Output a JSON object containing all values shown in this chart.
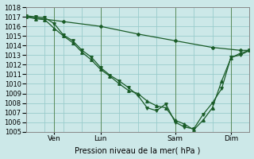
{
  "title": "",
  "xlabel": "Pression niveau de la mer( hPa )",
  "ylabel": "",
  "background_color": "#cce8e8",
  "grid_color": "#99cccc",
  "line_color": "#1a5c28",
  "marker_color": "#1a5c28",
  "ylim": [
    1005,
    1018
  ],
  "xlim": [
    0,
    12
  ],
  "series": [
    {
      "x": [
        0.0,
        2.0,
        4.0,
        6.0,
        8.0,
        10.0,
        11.5,
        12.0
      ],
      "y": [
        1017.0,
        1016.5,
        1016.0,
        1015.2,
        1014.5,
        1013.8,
        1013.5,
        1013.5
      ],
      "marker": "D",
      "markersize": 2.0,
      "linewidth": 0.9
    },
    {
      "x": [
        0.0,
        0.5,
        1.0,
        1.5,
        2.0,
        2.5,
        3.0,
        3.5,
        4.0,
        4.5,
        5.0,
        5.5,
        6.0,
        6.5,
        7.0,
        7.5,
        8.0,
        8.5,
        9.0,
        9.5,
        10.0,
        10.5,
        11.0,
        11.5,
        12.0
      ],
      "y": [
        1017.0,
        1016.8,
        1016.7,
        1015.8,
        1015.0,
        1014.3,
        1013.3,
        1012.5,
        1011.5,
        1010.8,
        1010.0,
        1009.3,
        1009.0,
        1008.2,
        1007.7,
        1007.5,
        1006.2,
        1005.8,
        1005.2,
        1006.2,
        1007.5,
        1010.3,
        1012.7,
        1013.2,
        1013.5
      ],
      "marker": "^",
      "markersize": 2.5,
      "linewidth": 0.9
    },
    {
      "x": [
        0.0,
        0.5,
        1.0,
        1.5,
        2.0,
        2.5,
        3.0,
        3.5,
        4.0,
        4.5,
        5.0,
        5.5,
        6.0,
        6.5,
        7.0,
        7.5,
        8.0,
        8.5,
        9.0,
        9.5,
        10.0,
        10.5,
        11.0,
        11.5,
        12.0
      ],
      "y": [
        1017.1,
        1017.0,
        1016.9,
        1016.3,
        1015.1,
        1014.5,
        1013.5,
        1012.8,
        1011.7,
        1010.9,
        1010.3,
        1009.6,
        1008.8,
        1007.5,
        1007.2,
        1007.9,
        1006.0,
        1005.5,
        1005.3,
        1006.8,
        1008.0,
        1009.5,
        1012.8,
        1013.0,
        1013.5
      ],
      "marker": "v",
      "markersize": 2.5,
      "linewidth": 0.9
    }
  ],
  "xtick_positions": [
    1.5,
    4.0,
    8.0,
    11.0
  ],
  "xtick_labels": [
    "Ven",
    "Lun",
    "Sam",
    "Dim"
  ],
  "vline_positions": [
    1.5,
    4.0,
    8.0,
    11.0
  ],
  "ytick_positions": [
    1005,
    1006,
    1007,
    1008,
    1009,
    1010,
    1011,
    1012,
    1013,
    1014,
    1015,
    1016,
    1017,
    1018
  ]
}
